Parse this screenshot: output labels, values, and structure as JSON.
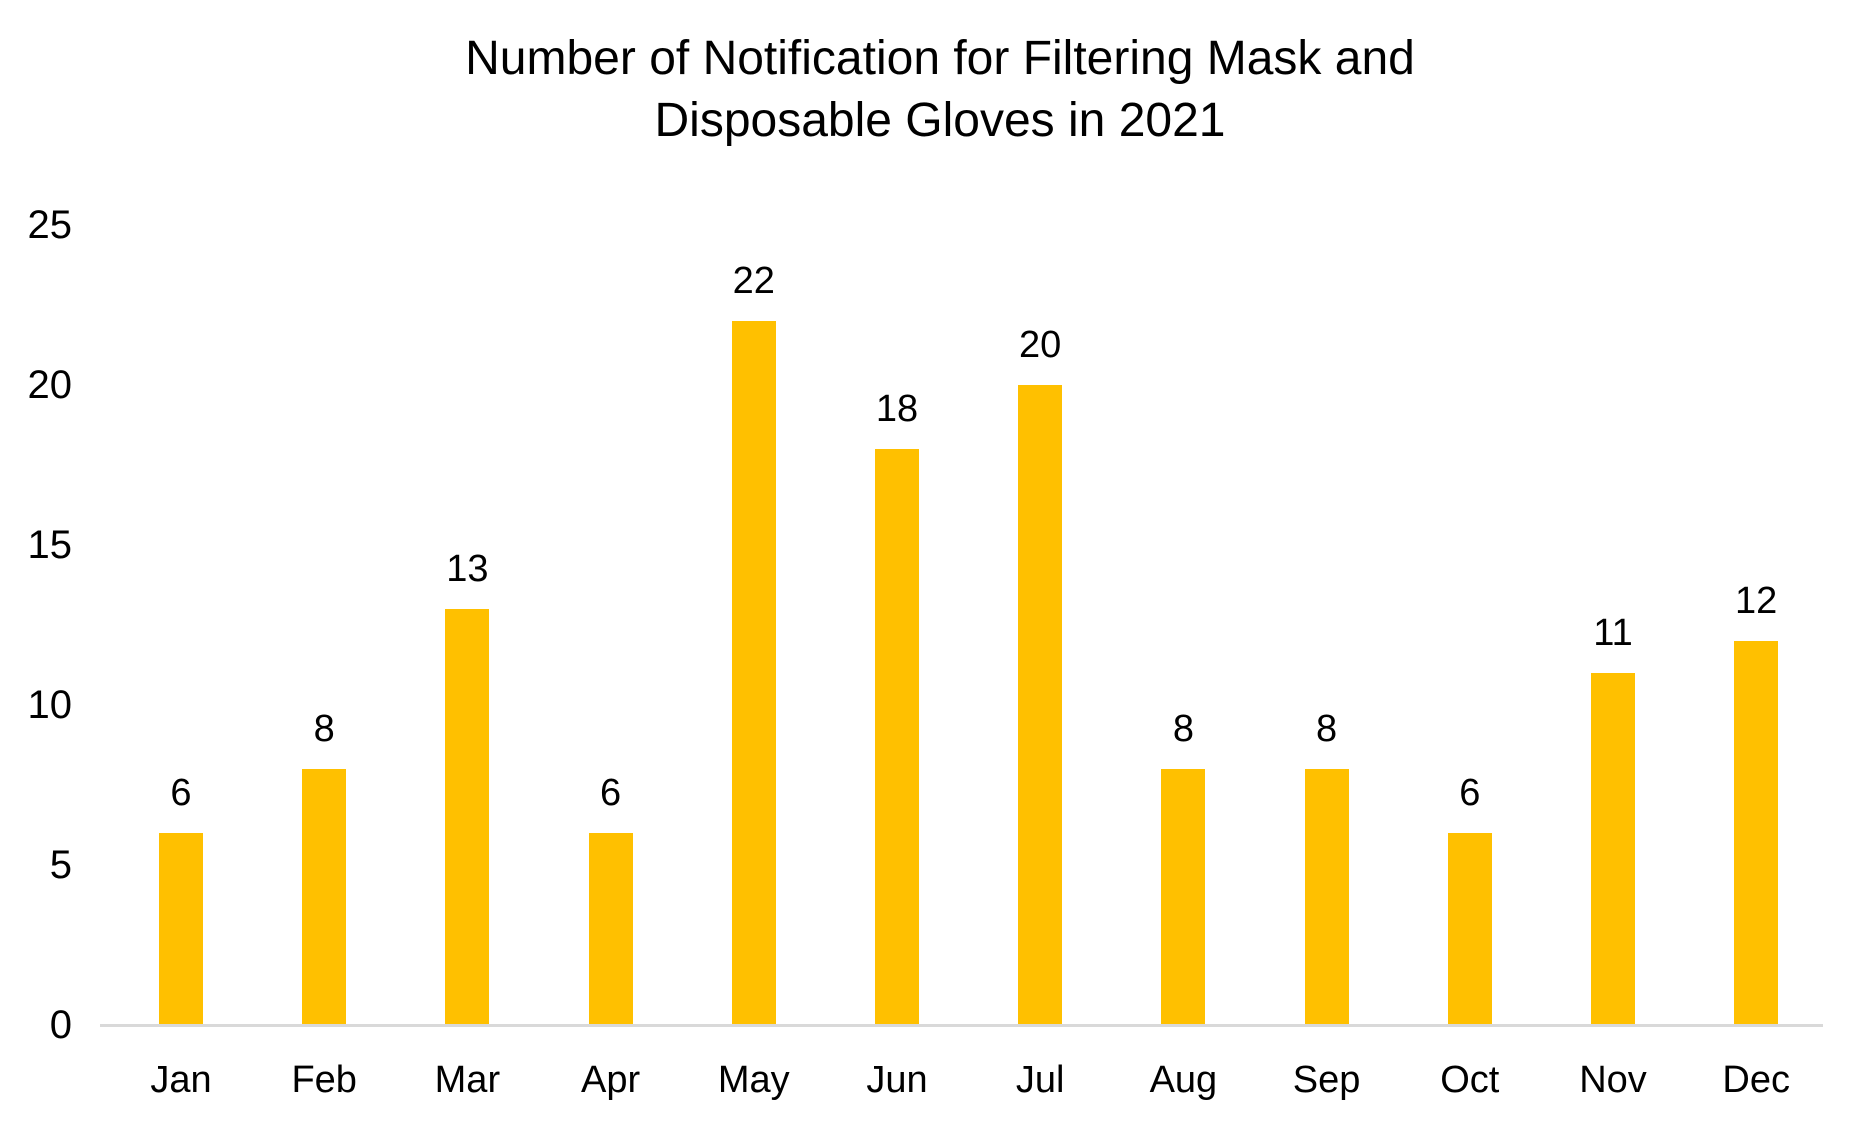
{
  "chart_data": {
    "type": "bar",
    "title": "Number of Notification for Filtering Mask and Disposable Gloves in 2021",
    "title_lines": [
      "Number of Notification for Filtering Mask and",
      "Disposable Gloves in 2021"
    ],
    "categories": [
      "Jan",
      "Feb",
      "Mar",
      "Apr",
      "May",
      "Jun",
      "Jul",
      "Aug",
      "Sep",
      "Oct",
      "Nov",
      "Dec"
    ],
    "values": [
      6,
      8,
      13,
      6,
      22,
      18,
      20,
      8,
      8,
      6,
      11,
      12
    ],
    "data_labels": [
      6,
      8,
      13,
      6,
      22,
      18,
      20,
      8,
      8,
      6,
      11,
      12
    ],
    "xlabel": "",
    "ylabel": "",
    "ylim": [
      0,
      25
    ],
    "yticks": [
      0,
      5,
      10,
      15,
      20,
      25
    ],
    "grid": false,
    "legend": false,
    "colors": {
      "bar_fill": "#FFC000",
      "axis_line": "#D9D9D9",
      "text": "#000000",
      "background": "#FFFFFF"
    }
  }
}
